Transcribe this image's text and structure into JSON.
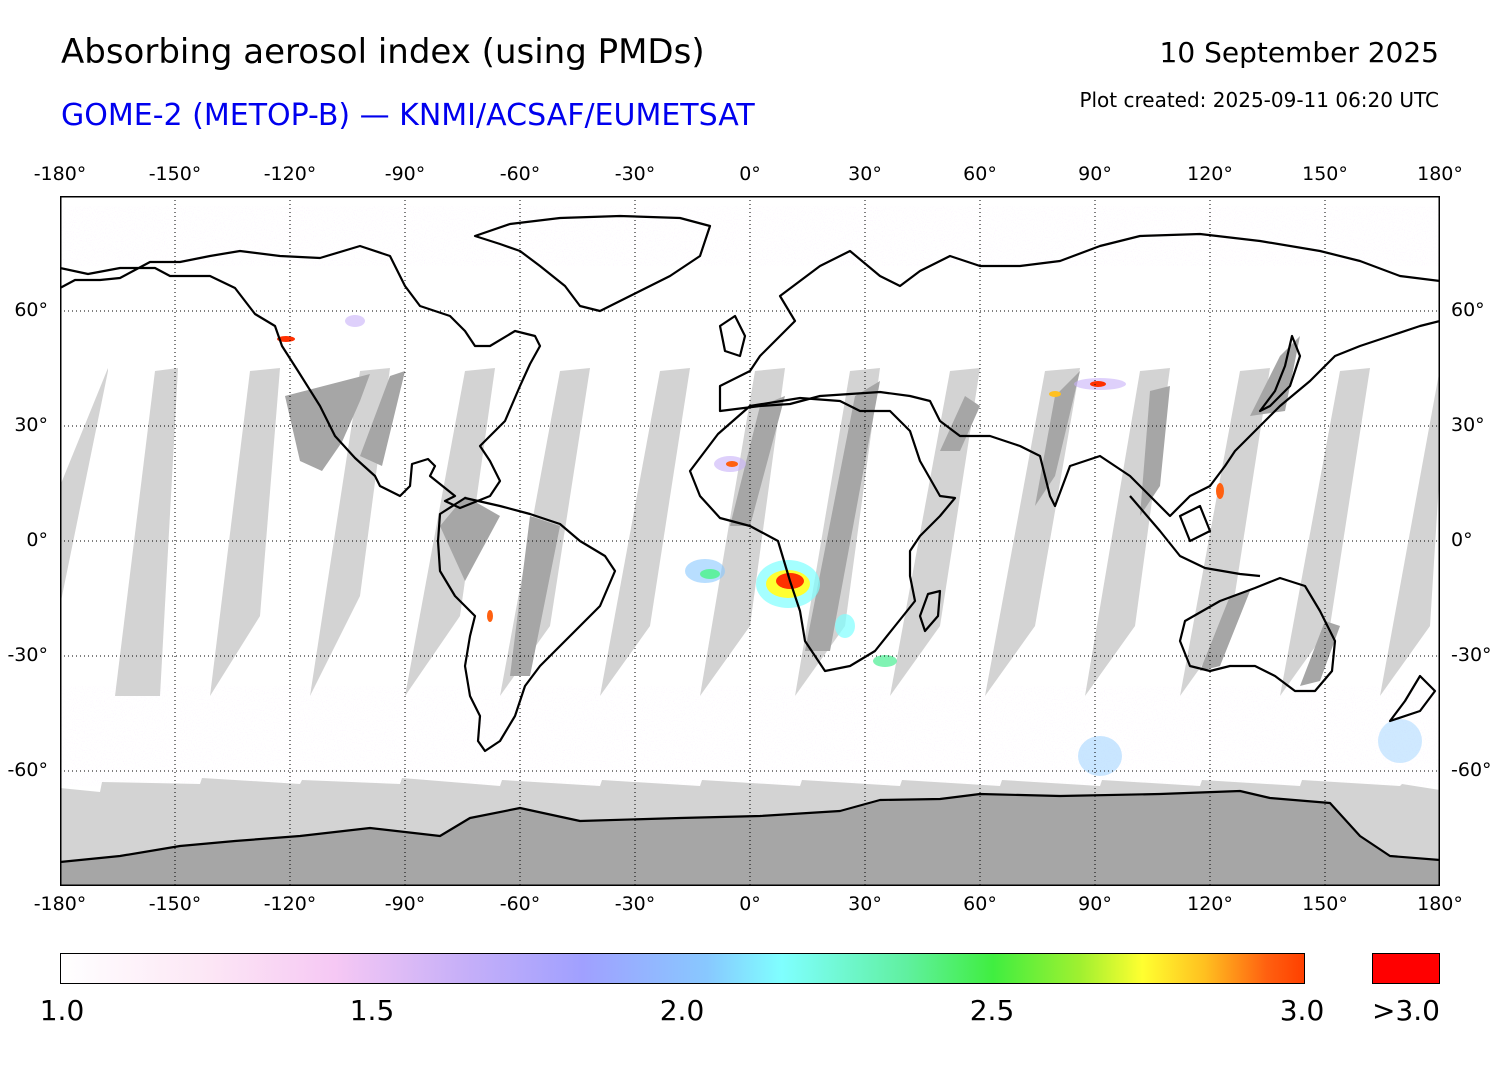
{
  "header": {
    "title": "Absorbing aerosol index (using PMDs)",
    "subtitle": "GOME-2 (METOP-B) — KNMI/ACSAF/EUMETSAT",
    "date": "10 September 2025",
    "created": "Plot created: 2025-09-11 06:20 UTC"
  },
  "map": {
    "projection": "equirectangular",
    "lon_range": [
      -180,
      180
    ],
    "lat_range": [
      -90,
      90
    ],
    "lon_ticks": [
      -180,
      -150,
      -120,
      -90,
      -60,
      -30,
      0,
      30,
      60,
      90,
      120,
      150,
      180
    ],
    "lon_labels": [
      "-180°",
      "-150°",
      "-120°",
      "-90°",
      "-60°",
      "-30°",
      "0°",
      "30°",
      "60°",
      "90°",
      "120°",
      "150°",
      "180°"
    ],
    "lat_ticks": [
      60,
      30,
      0,
      -30,
      -60
    ],
    "lat_labels": [
      "60°",
      "30°",
      "0°",
      "-30°",
      "-60°"
    ],
    "grid": "dotted",
    "colors": {
      "no_data_light": "#d3d3d3",
      "no_data_dark": "#a6a6a6",
      "coastline": "#000000"
    }
  },
  "colorbar": {
    "min": 1.0,
    "max": 3.0,
    "labels": [
      "1.0",
      "1.5",
      "2.0",
      "2.5",
      "3.0"
    ],
    "over_label": ">3.0",
    "over_color": "#ff0000"
  }
}
